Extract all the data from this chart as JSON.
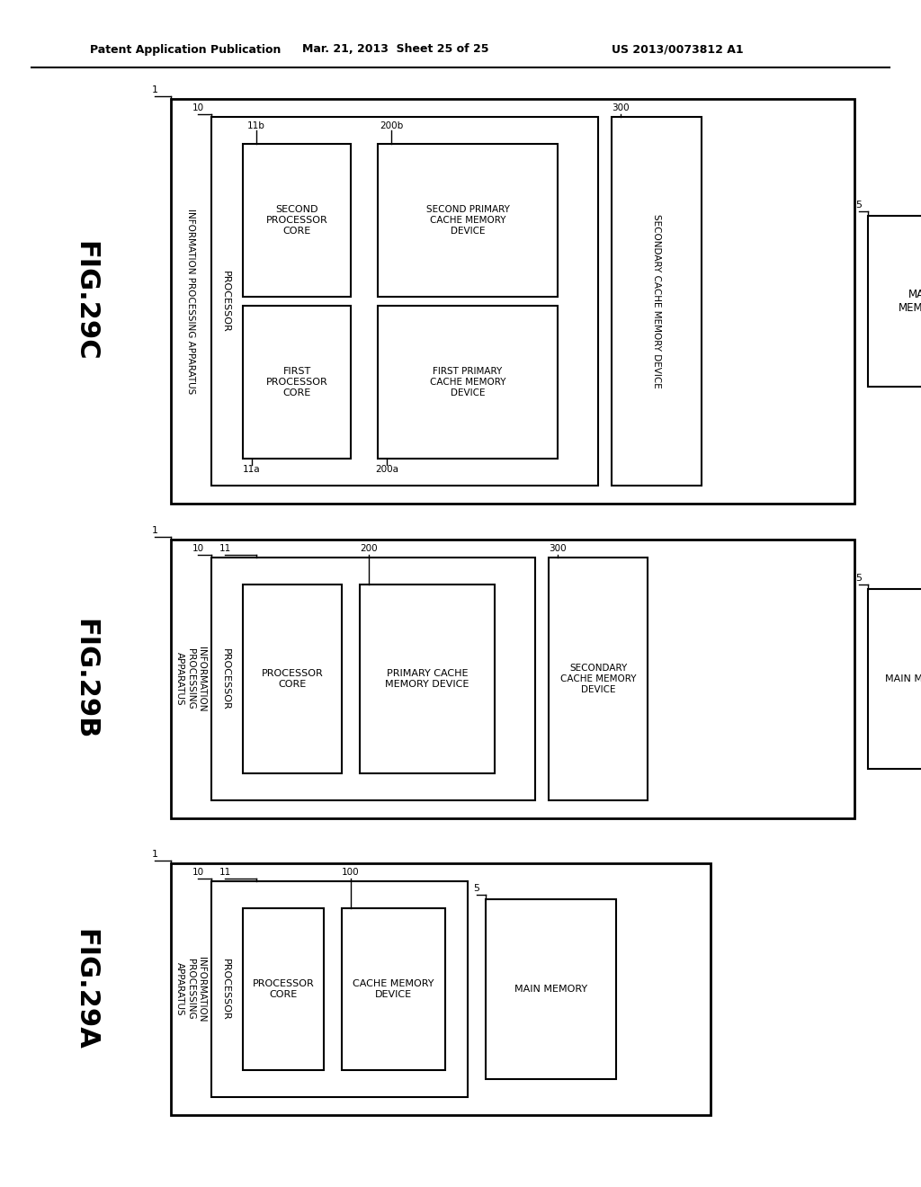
{
  "bg": "#ffffff",
  "header_left": "Patent Application Publication",
  "header_mid": "Mar. 21, 2013  Sheet 25 of 25",
  "header_right": "US 2013/0073812 A1"
}
